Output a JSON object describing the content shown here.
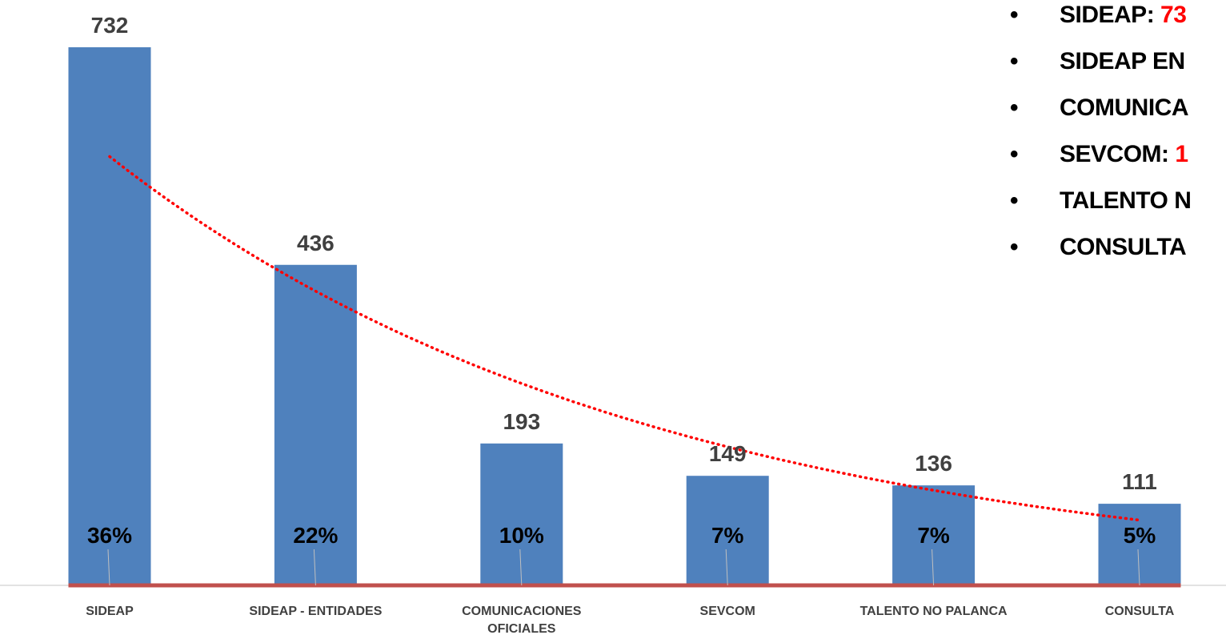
{
  "chart_data": {
    "type": "bar",
    "categories": [
      "SIDEAP",
      "SIDEAP - ENTIDADES",
      "COMUNICACIONES OFICIALES",
      "SEVCOM",
      "TALENTO NO PALANCA",
      "CONSULTA"
    ],
    "values": [
      732,
      436,
      193,
      149,
      136,
      111
    ],
    "percent_labels": [
      "36%",
      "22%",
      "10%",
      "7%",
      "7%",
      "5%"
    ],
    "bar_color": "#4f81bd",
    "trendline": {
      "type": "exponential",
      "style": "dotted",
      "color": "#ff0000"
    },
    "baseline_color": "#c0504d",
    "ylim": [
      0,
      780
    ],
    "title": "",
    "xlabel": "",
    "ylabel": ""
  },
  "legend": {
    "items": [
      {
        "name": "SIDEAP",
        "separator": ": ",
        "value": "73"
      },
      {
        "name": "SIDEAP EN",
        "separator": "",
        "value": ""
      },
      {
        "name": "COMUNICA",
        "separator": "",
        "value": ""
      },
      {
        "name": "SEVCOM",
        "separator": ": ",
        "value": "1"
      },
      {
        "name": "TALENTO N",
        "separator": "",
        "value": ""
      },
      {
        "name": "CONSULTA",
        "separator": "",
        "value": ""
      }
    ],
    "bullet": "•"
  }
}
